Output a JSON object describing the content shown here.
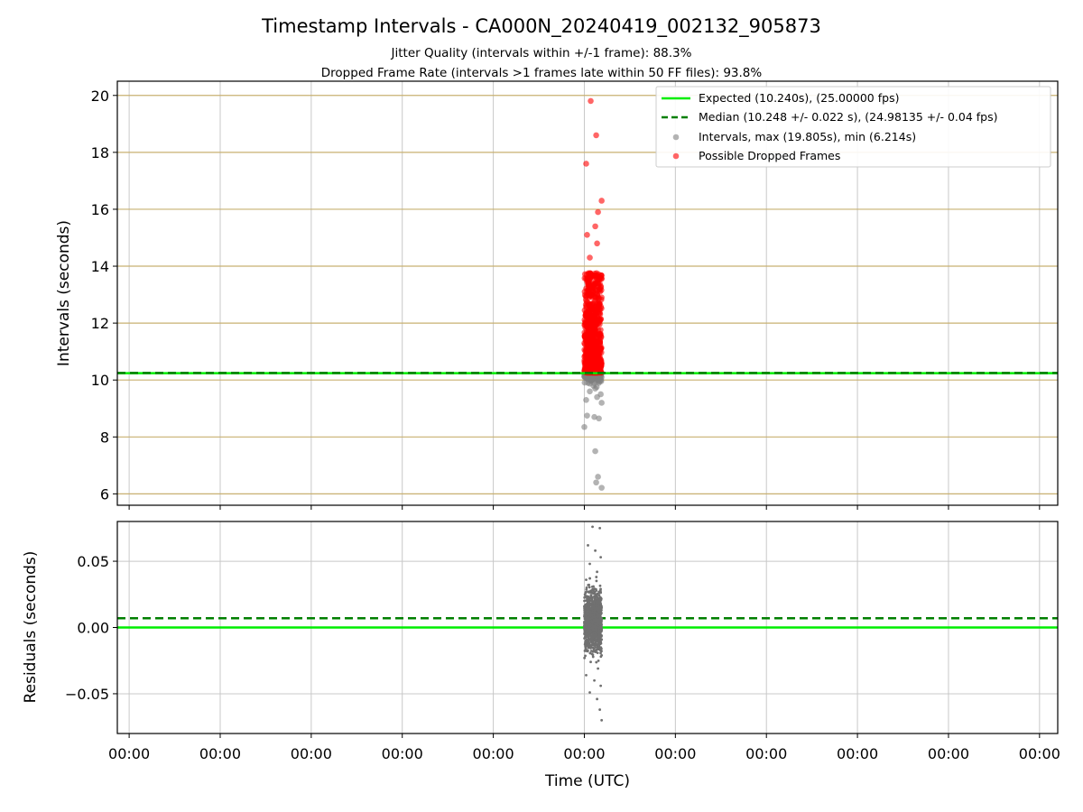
{
  "figure": {
    "title": "Timestamp Intervals - CA000N_20240419_002132_905873",
    "subtitle_line1": "Jitter Quality (intervals within +/-1 frame): 88.3%",
    "subtitle_line2": "Dropped Frame Rate (intervals >1 frames late within 50 FF files): 93.8%"
  },
  "colors": {
    "expected": "#00ee00",
    "median": "#007f00",
    "intervals": "#808080",
    "dropped": "#ff0000",
    "residuals": "#707070",
    "grid_top": "#c8b070",
    "grid": "#c8c8c8"
  },
  "chart_data": [
    {
      "type": "scatter",
      "ylabel": "Intervals (seconds)",
      "ylim": [
        5.6,
        20.5
      ],
      "yticks": [
        6,
        8,
        10,
        12,
        14,
        16,
        18,
        20
      ],
      "ytick_labels": [
        "6",
        "8",
        "10",
        "12",
        "14",
        "16",
        "18",
        "20"
      ],
      "grid": true,
      "legend_location": "top-right",
      "reference_lines": {
        "expected": 10.24,
        "median": 10.248
      },
      "series": [
        {
          "name": "Expected (10.240s), (25.00000 fps)",
          "style": "solid-line"
        },
        {
          "name": "Median (10.248 +/- 0.022 s), (24.98135 +/- 0.04 fps)",
          "style": "dashed-line"
        },
        {
          "name": "Intervals, max (19.805s), min (6.214s)",
          "style": "gray-points",
          "points": [
            [
              0.2,
              9.3
            ],
            [
              0.6,
              9.6
            ],
            [
              1.0,
              9.8
            ],
            [
              0.4,
              9.9
            ],
            [
              1.4,
              9.4
            ],
            [
              1.8,
              9.5
            ],
            [
              0.3,
              8.75
            ],
            [
              1.1,
              8.7
            ],
            [
              1.6,
              8.65
            ],
            [
              0.0,
              8.35
            ],
            [
              1.2,
              7.5
            ],
            [
              1.5,
              6.6
            ],
            [
              1.3,
              6.4
            ],
            [
              1.9,
              6.214
            ],
            [
              0.8,
              10.0
            ],
            [
              1.6,
              9.9
            ],
            [
              0.5,
              10.1
            ],
            [
              1.2,
              9.7
            ],
            [
              1.9,
              9.2
            ],
            [
              0.7,
              10.15
            ]
          ]
        },
        {
          "name": "Possible Dropped Frames",
          "style": "red-points",
          "points": [
            [
              0.7,
              19.805
            ],
            [
              1.3,
              18.6
            ],
            [
              0.2,
              17.6
            ],
            [
              1.9,
              16.3
            ],
            [
              1.5,
              15.9
            ],
            [
              1.2,
              15.4
            ],
            [
              0.3,
              15.1
            ],
            [
              1.4,
              14.8
            ],
            [
              0.6,
              14.3
            ],
            [
              1.7,
              13.6
            ],
            [
              0.8,
              13.2
            ],
            [
              1.9,
              12.9
            ],
            [
              0.4,
              12.4
            ],
            [
              1.1,
              12.0
            ],
            [
              1.5,
              11.6
            ],
            [
              0.6,
              11.2
            ],
            [
              1.2,
              10.9
            ],
            [
              1.8,
              10.6
            ],
            [
              0.3,
              10.4
            ],
            [
              1.0,
              10.3
            ]
          ]
        }
      ]
    },
    {
      "type": "scatter",
      "xlabel": "Time (UTC)",
      "ylabel": "Residuals (seconds)",
      "ylim": [
        -0.08,
        0.08
      ],
      "yticks": [
        -0.05,
        0,
        0.05
      ],
      "ytick_labels": [
        "−0.05",
        "0.00",
        "0.05"
      ],
      "xticks": [
        -50,
        -40,
        -30,
        -20,
        -10,
        0,
        10,
        20,
        30,
        40,
        50
      ],
      "xtick_labels": [
        "00:00",
        "00:00",
        "00:00",
        "00:00",
        "00:00",
        "00:00",
        "00:00",
        "00:00",
        "00:00",
        "00:00",
        "00:00"
      ],
      "xlim": [
        -51.3,
        52.0
      ],
      "grid": true,
      "reference_lines": {
        "expected": 0.0,
        "median": 0.007
      },
      "series": [
        {
          "name": "Residuals",
          "style": "small-gray-points",
          "points": [
            [
              0.9,
              0.076
            ],
            [
              1.7,
              0.075
            ],
            [
              0.4,
              0.062
            ],
            [
              1.2,
              0.058
            ],
            [
              1.8,
              0.053
            ],
            [
              0.6,
              0.048
            ],
            [
              1.4,
              0.042
            ],
            [
              0.2,
              0.036
            ],
            [
              1.0,
              0.031
            ],
            [
              1.6,
              0.027
            ],
            [
              0.3,
              0.022
            ],
            [
              1.2,
              0.018
            ],
            [
              1.8,
              0.014
            ],
            [
              0.5,
              0.01
            ],
            [
              1.0,
              0.006
            ],
            [
              1.5,
              0.003
            ],
            [
              0.2,
              0.0
            ],
            [
              0.9,
              -0.004
            ],
            [
              1.7,
              -0.008
            ],
            [
              0.4,
              -0.012
            ],
            [
              1.3,
              -0.017
            ],
            [
              1.9,
              -0.021
            ],
            [
              0.7,
              -0.026
            ],
            [
              1.5,
              -0.031
            ],
            [
              0.2,
              -0.036
            ],
            [
              1.1,
              -0.04
            ],
            [
              1.8,
              -0.044
            ],
            [
              0.6,
              -0.049
            ],
            [
              1.4,
              -0.054
            ],
            [
              1.7,
              -0.062
            ],
            [
              1.9,
              -0.07
            ]
          ]
        }
      ]
    }
  ]
}
